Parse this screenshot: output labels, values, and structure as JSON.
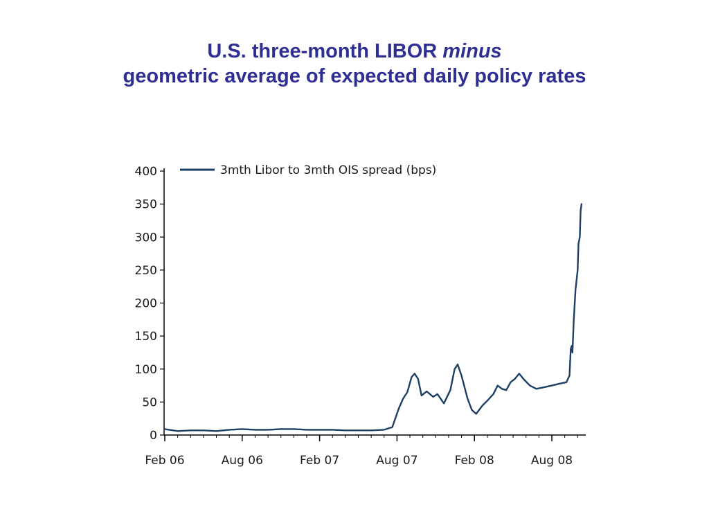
{
  "title": {
    "line1_prefix": "U.S. three-month LIBOR ",
    "line1_emphasis": "minus",
    "line2": "geometric average of expected daily policy rates"
  },
  "colors": {
    "title": "#2f2f93",
    "series": "#1d3f64",
    "axis": "#000000"
  },
  "chart_data": {
    "type": "line",
    "legend_position": "top-left",
    "grid": false,
    "ylim": [
      0,
      400
    ],
    "y_ticks": [
      0,
      50,
      100,
      150,
      200,
      250,
      300,
      350,
      400
    ],
    "y_tick_labels": [
      "0",
      "50",
      "100",
      "150",
      "200",
      "250",
      "300",
      "350",
      "400"
    ],
    "x_ticks": [
      "2006-02",
      "2006-08",
      "2007-02",
      "2007-08",
      "2008-02",
      "2008-08"
    ],
    "x_tick_labels": [
      "Feb 06",
      "Aug 06",
      "Feb 07",
      "Aug 07",
      "Feb 08",
      "Aug 08"
    ],
    "xlim": [
      "2006-02",
      "2008-10"
    ],
    "series": [
      {
        "name": "3mth Libor to 3mth OIS spread (bps)",
        "points": [
          [
            "2006-02",
            9
          ],
          [
            "2006-03",
            6
          ],
          [
            "2006-04",
            7
          ],
          [
            "2006-05",
            7
          ],
          [
            "2006-06",
            6
          ],
          [
            "2006-07",
            8
          ],
          [
            "2006-08",
            9
          ],
          [
            "2006-09",
            8
          ],
          [
            "2006-10",
            8
          ],
          [
            "2006-11",
            9
          ],
          [
            "2006-12",
            9
          ],
          [
            "2007-01",
            8
          ],
          [
            "2007-02",
            8
          ],
          [
            "2007-03",
            8
          ],
          [
            "2007-04",
            7
          ],
          [
            "2007-05",
            7
          ],
          [
            "2007-06",
            7
          ],
          [
            "2007-07",
            8
          ],
          [
            "2007-07-20",
            12
          ],
          [
            "2007-08-05",
            40
          ],
          [
            "2007-08-15",
            55
          ],
          [
            "2007-08-25",
            65
          ],
          [
            "2007-09-05",
            88
          ],
          [
            "2007-09-12",
            93
          ],
          [
            "2007-09-20",
            85
          ],
          [
            "2007-09-28",
            60
          ],
          [
            "2007-10-10",
            66
          ],
          [
            "2007-10-25",
            58
          ],
          [
            "2007-11-05",
            62
          ],
          [
            "2007-11-20",
            48
          ],
          [
            "2007-12-05",
            68
          ],
          [
            "2007-12-15",
            100
          ],
          [
            "2007-12-22",
            107
          ],
          [
            "2008-01-01",
            90
          ],
          [
            "2008-01-15",
            55
          ],
          [
            "2008-01-25",
            38
          ],
          [
            "2008-02-05",
            32
          ],
          [
            "2008-02-20",
            45
          ],
          [
            "2008-03-01",
            52
          ],
          [
            "2008-03-15",
            62
          ],
          [
            "2008-03-25",
            75
          ],
          [
            "2008-04-05",
            70
          ],
          [
            "2008-04-15",
            68
          ],
          [
            "2008-04-25",
            80
          ],
          [
            "2008-05-05",
            85
          ],
          [
            "2008-05-15",
            93
          ],
          [
            "2008-05-25",
            85
          ],
          [
            "2008-06-10",
            75
          ],
          [
            "2008-06-25",
            70
          ],
          [
            "2008-07-10",
            72
          ],
          [
            "2008-08-01",
            75
          ],
          [
            "2008-08-20",
            78
          ],
          [
            "2008-09-05",
            80
          ],
          [
            "2008-09-12",
            90
          ],
          [
            "2008-09-15",
            130
          ],
          [
            "2008-09-17",
            135
          ],
          [
            "2008-09-19",
            125
          ],
          [
            "2008-09-22",
            175
          ],
          [
            "2008-09-26",
            220
          ],
          [
            "2008-10-01",
            250
          ],
          [
            "2008-10-03",
            290
          ],
          [
            "2008-10-06",
            300
          ],
          [
            "2008-10-08",
            340
          ],
          [
            "2008-10-10",
            350
          ]
        ]
      }
    ]
  }
}
